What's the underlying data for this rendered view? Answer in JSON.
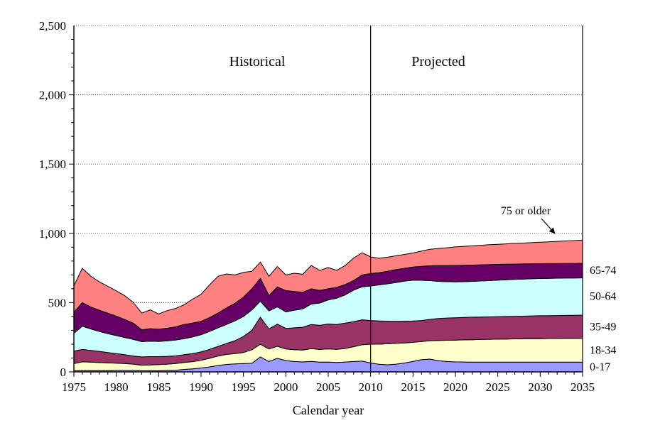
{
  "chart_data": {
    "type": "area",
    "stacked": true,
    "xlabel": "Calendar year",
    "ylabel": "",
    "x_start": 1975,
    "x_end": 2035,
    "ylim": [
      0,
      2500
    ],
    "grid": "horizontal-dotted",
    "divider_year": 2010,
    "x_ticks": [
      1975,
      1980,
      1985,
      1990,
      1995,
      2000,
      2005,
      2010,
      2015,
      2020,
      2025,
      2030,
      2035
    ],
    "y_ticks": [
      {
        "value": 0,
        "label": "0"
      },
      {
        "value": 500,
        "label": "500"
      },
      {
        "value": 1000,
        "label": "1,000"
      },
      {
        "value": 1500,
        "label": "1,500"
      },
      {
        "value": 2000,
        "label": "2,000"
      },
      {
        "value": 2500,
        "label": "2,500"
      }
    ],
    "annotations": {
      "historical": "Historical",
      "projected": "Projected",
      "oldest": "75 or older"
    },
    "series": [
      {
        "name": "0-17",
        "color": "#9999FF",
        "values": [
          8,
          9,
          9,
          9,
          9,
          10,
          10,
          10,
          8,
          8,
          8,
          10,
          12,
          18,
          22,
          28,
          36,
          46,
          54,
          58,
          60,
          62,
          108,
          75,
          98,
          82,
          75,
          72,
          76,
          70,
          71,
          68,
          71,
          75,
          78,
          64,
          55,
          51,
          56,
          64,
          76,
          88,
          92,
          81,
          75,
          72,
          71,
          70,
          70,
          70,
          70,
          70,
          70,
          70,
          70,
          70,
          70,
          70,
          70,
          70,
          70
        ]
      },
      {
        "name": "18-34",
        "color": "#FFFFCC",
        "values": [
          52,
          63,
          61,
          58,
          56,
          53,
          50,
          46,
          40,
          42,
          44,
          46,
          48,
          50,
          52,
          56,
          62,
          68,
          72,
          74,
          80,
          98,
          92,
          90,
          87,
          83,
          85,
          86,
          92,
          92,
          95,
          95,
          98,
          107,
          118,
          136,
          145,
          152,
          150,
          145,
          137,
          131,
          133,
          146,
          153,
          157,
          160,
          162,
          164,
          165,
          166,
          167,
          168,
          169,
          170,
          170,
          171,
          171,
          172,
          172,
          173
        ]
      },
      {
        "name": "35-49",
        "color": "#993366",
        "values": [
          90,
          90,
          85,
          81,
          75,
          69,
          64,
          59,
          60,
          60,
          58,
          56,
          56,
          56,
          58,
          60,
          64,
          70,
          79,
          93,
          115,
          140,
          195,
          145,
          160,
          149,
          158,
          164,
          174,
          174,
          180,
          179,
          183,
          180,
          180,
          171,
          168,
          163,
          159,
          157,
          154,
          152,
          154,
          158,
          161,
          162,
          162,
          163,
          162,
          162,
          162,
          163,
          163,
          163,
          164,
          165,
          165,
          166,
          166,
          167,
          167
        ]
      },
      {
        "name": "50-64",
        "color": "#CCFFFF",
        "values": [
          128,
          168,
          155,
          144,
          136,
          130,
          124,
          119,
          110,
          112,
          110,
          112,
          114,
          116,
          120,
          124,
          130,
          134,
          137,
          143,
          145,
          148,
          115,
          130,
          125,
          119,
          127,
          133,
          148,
          161,
          174,
          190,
          204,
          228,
          238,
          249,
          260,
          270,
          280,
          289,
          295,
          290,
          280,
          268,
          262,
          259,
          258,
          258,
          260,
          262,
          264,
          265,
          267,
          268,
          268,
          269,
          269,
          269,
          269,
          269,
          269
        ]
      },
      {
        "name": "65-74",
        "color": "#660066",
        "values": [
          152,
          170,
          158,
          153,
          148,
          140,
          130,
          118,
          86,
          90,
          88,
          91,
          95,
          102,
          100,
          96,
          100,
          106,
          120,
          127,
          140,
          152,
          165,
          111,
          143,
          154,
          135,
          120,
          110,
          91,
          80,
          78,
          74,
          70,
          86,
          90,
          88,
          90,
          93,
          93,
          95,
          101,
          107,
          114,
          116,
          118,
          118,
          118,
          117,
          115,
          114,
          112,
          110,
          109,
          108,
          107,
          107,
          106,
          106,
          105,
          105
        ]
      },
      {
        "name": "75 or older",
        "color": "#FF8080",
        "values": [
          192,
          248,
          222,
          205,
          194,
          183,
          172,
          150,
          120,
          136,
          110,
          127,
          133,
          142,
          173,
          196,
          236,
          266,
          245,
          205,
          178,
          126,
          118,
          139,
          147,
          113,
          132,
          130,
          168,
          144,
          153,
          123,
          138,
          162,
          160,
          120,
          104,
          102,
          100,
          100,
          101,
          110,
          119,
          124,
          129,
          134,
          137,
          139,
          141,
          144,
          145,
          147,
          149,
          151,
          153,
          155,
          157,
          160,
          162,
          165,
          168
        ]
      }
    ]
  }
}
